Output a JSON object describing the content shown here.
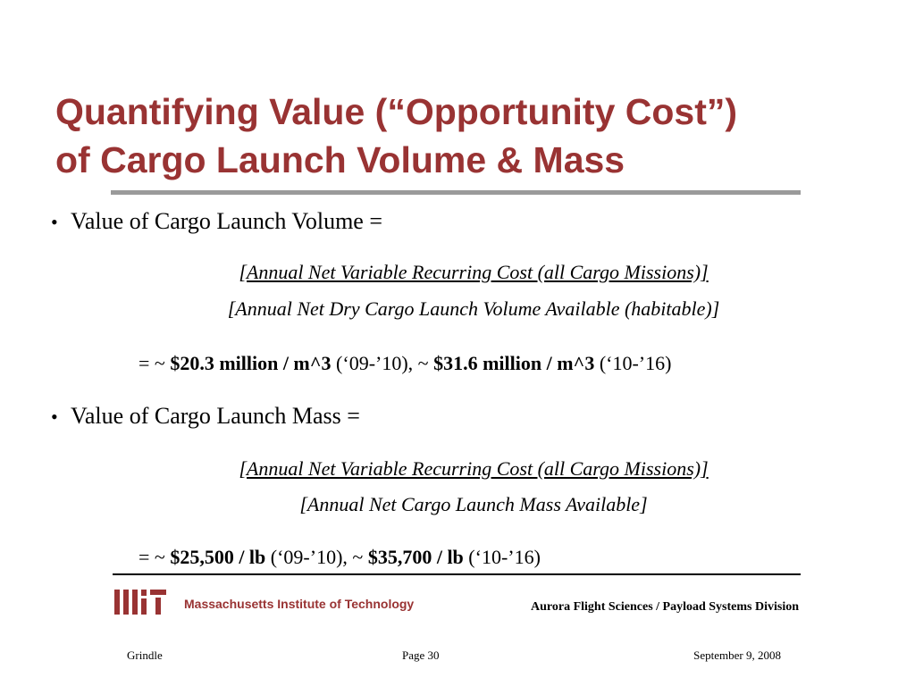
{
  "title": {
    "line1": "Quantifying Value (“Opportunity Cost”)",
    "line2": "of Cargo Launch Volume & Mass"
  },
  "volume": {
    "bullet_glyph": "•",
    "heading": "Value of Cargo Launch Volume =",
    "numerator": "[Annual Net Variable Recurring Cost (all Cargo Missions)]",
    "denominator": "[Annual Net Dry Cargo Launch Volume Available (habitable)]",
    "result": {
      "prefix": "= ~ ",
      "value1": "$20.3 million / m^3",
      "period1": " (‘09-’10), ~ ",
      "value2": "$31.6 million / m^3",
      "period2": " (‘10-’16)"
    }
  },
  "mass": {
    "bullet_glyph": "•",
    "heading": "Value of Cargo Launch Mass =",
    "numerator": "[Annual Net Variable Recurring Cost (all Cargo Missions)]",
    "denominator": "[Annual Net Cargo Launch Mass Available]",
    "result": {
      "prefix": "= ~ ",
      "value1": "$25,500 / lb",
      "period1": " (‘09-’10), ~ ",
      "value2": "$35,700 / lb",
      "period2": " (‘10-’16)"
    }
  },
  "branding": {
    "mit_logo_text": "Massachusetts Institute of Technology",
    "organization": "Aurora Flight Sciences / Payload Systems Division",
    "accent_color": "#993333"
  },
  "footer": {
    "author": "Grindle",
    "page": "Page 30",
    "date": "September 9, 2008"
  }
}
